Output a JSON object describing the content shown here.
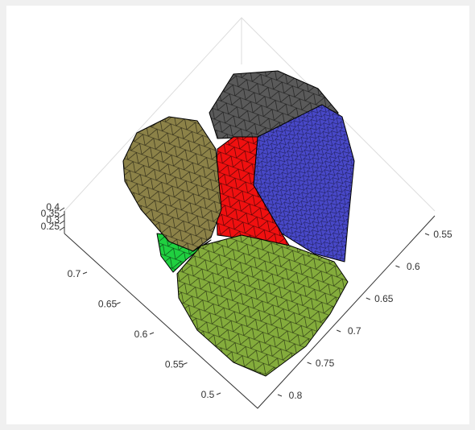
{
  "chart_data": {
    "type": "mesh3d",
    "xticks": [
      0.55,
      0.6,
      0.65,
      0.7,
      0.75,
      0.8
    ],
    "yticks": [
      0.5,
      0.55,
      0.6,
      0.65,
      0.7
    ],
    "zticks": [
      0.25,
      0.3,
      0.35,
      0.4
    ],
    "colors": [
      "#5a5a5a",
      "#4848c8",
      "#f01010",
      "#8c8248",
      "#20d040",
      "#84ac3c"
    ],
    "grid": true
  }
}
